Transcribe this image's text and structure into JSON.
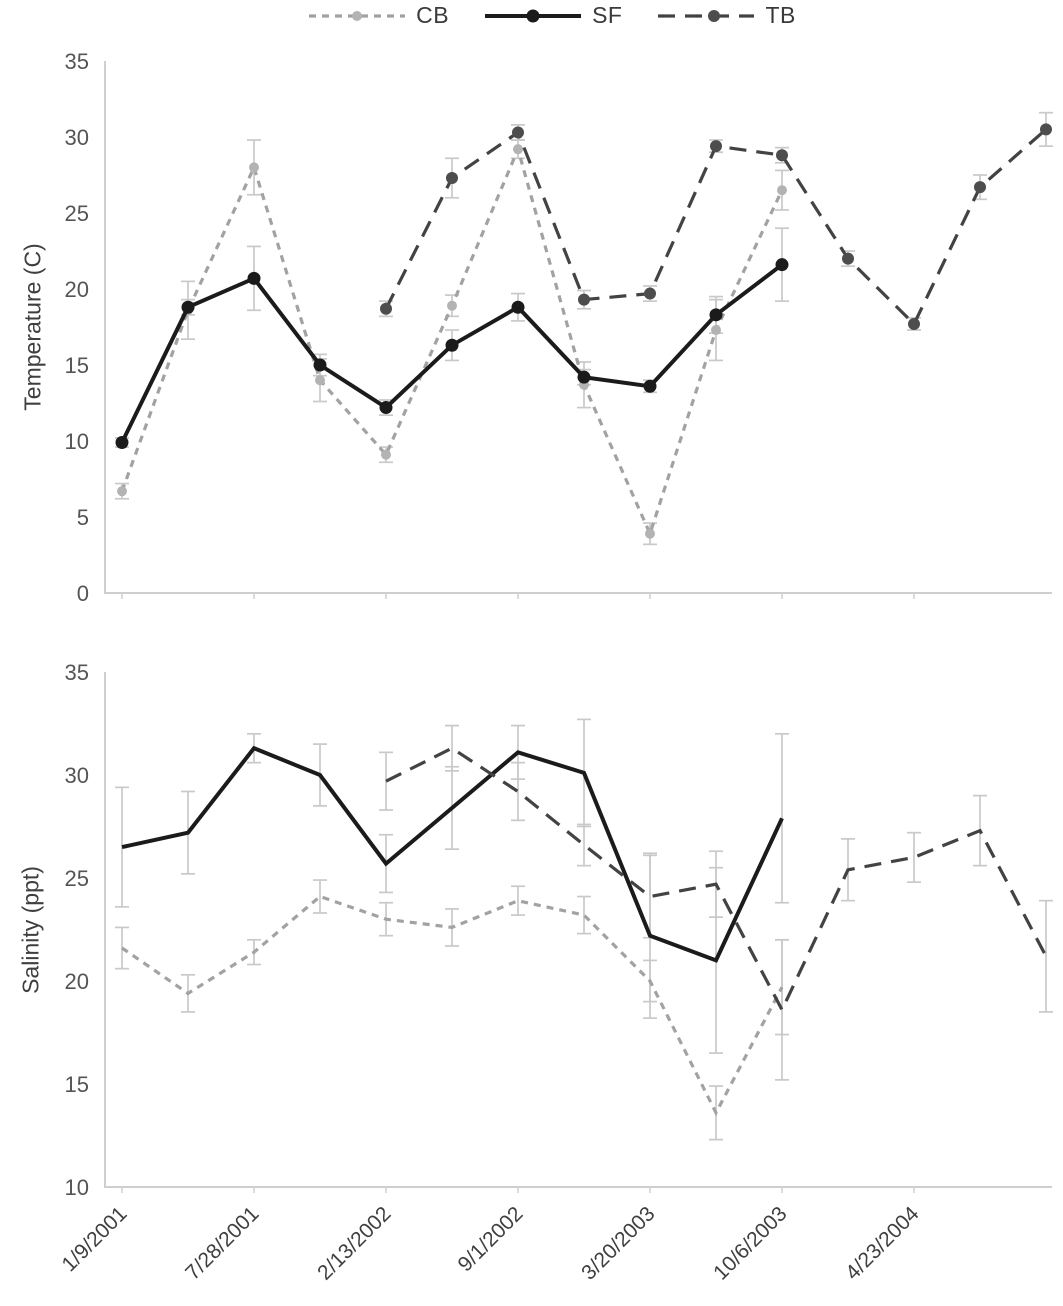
{
  "legend": {
    "items": [
      {
        "label": "CB"
      },
      {
        "label": "SF"
      },
      {
        "label": "TB"
      }
    ]
  },
  "colors": {
    "cb": "#a2a2a2",
    "cb_marker": "#b3b3b3",
    "sf": "#1b1b1b",
    "tb": "#434343",
    "tb_marker": "#4d4d4d",
    "axis": "#cfcfcf",
    "tick_text": "#555555",
    "label_text": "#3f3f3f",
    "error_bar": "#c9c9c9"
  },
  "x_axis": {
    "tick_labels": [
      "1/9/2001",
      "7/28/2001",
      "2/13/2002",
      "9/1/2002",
      "3/20/2003",
      "10/6/2003",
      "4/23/2004"
    ],
    "label_slots": [
      0,
      2,
      4,
      6,
      8,
      10,
      12
    ],
    "num_slots": 15
  },
  "chart_data": [
    {
      "type": "line",
      "title": "",
      "xlabel": "",
      "ylabel": "Temperature (C)",
      "ylim": [
        0,
        35
      ],
      "yticks": [
        0,
        5,
        10,
        15,
        20,
        25,
        30,
        35
      ],
      "grid": false,
      "legend_position": "top-center",
      "x_tick_labels": [
        "1/9/2001",
        "7/28/2001",
        "2/13/2002",
        "9/1/2002",
        "3/20/2003",
        "10/6/2003",
        "4/23/2004"
      ],
      "series": [
        {
          "name": "CB",
          "color_key": "cb",
          "marker_color_key": "cb_marker",
          "line_style": "short-dash",
          "marker": true,
          "start_slot": 0,
          "values": [
            6.7,
            18.6,
            28.0,
            14.0,
            9.1,
            18.9,
            29.2,
            13.7,
            3.9,
            17.3,
            26.5
          ],
          "errors": [
            0.5,
            1.9,
            1.8,
            1.4,
            0.5,
            0.7,
            0.6,
            1.5,
            0.7,
            2.0,
            1.3
          ]
        },
        {
          "name": "SF",
          "color_key": "sf",
          "marker_color_key": "sf",
          "line_style": "solid",
          "marker": true,
          "start_slot": 0,
          "values": [
            9.9,
            18.8,
            20.7,
            15.0,
            12.2,
            16.3,
            18.8,
            14.2,
            13.6,
            18.3,
            21.6
          ],
          "errors": [
            0.3,
            0.5,
            2.1,
            0.7,
            0.5,
            1.0,
            0.9,
            0.5,
            0.4,
            1.2,
            2.4
          ]
        },
        {
          "name": "TB",
          "color_key": "tb",
          "marker_color_key": "tb_marker",
          "line_style": "long-dash",
          "marker": true,
          "start_slot": 4,
          "values": [
            18.7,
            27.3,
            30.3,
            19.3,
            19.7,
            29.4,
            28.8,
            22.0,
            17.7,
            26.7,
            30.5
          ],
          "errors": [
            0.5,
            1.3,
            0.5,
            0.6,
            0.5,
            0.4,
            0.5,
            0.5,
            0.4,
            0.8,
            1.1
          ]
        }
      ]
    },
    {
      "type": "line",
      "title": "",
      "xlabel": "",
      "ylabel": "Salinity (ppt)",
      "ylim": [
        10,
        35
      ],
      "yticks": [
        10,
        15,
        20,
        25,
        30,
        35
      ],
      "grid": false,
      "legend_position": "top-center",
      "x_tick_labels": [
        "1/9/2001",
        "7/28/2001",
        "2/13/2002",
        "9/1/2002",
        "3/20/2003",
        "10/6/2003",
        "4/23/2004"
      ],
      "series": [
        {
          "name": "CB",
          "color_key": "cb",
          "marker_color_key": "cb_marker",
          "line_style": "short-dash",
          "marker": false,
          "start_slot": 0,
          "values": [
            21.6,
            19.4,
            21.4,
            24.1,
            23.0,
            22.6,
            23.9,
            23.2,
            20.0,
            13.6,
            19.7
          ],
          "errors": [
            1.0,
            0.9,
            0.6,
            0.8,
            0.8,
            0.9,
            0.7,
            0.9,
            1.0,
            1.3,
            2.3
          ]
        },
        {
          "name": "SF",
          "color_key": "sf",
          "marker_color_key": "sf",
          "line_style": "solid",
          "marker": false,
          "start_slot": 0,
          "values": [
            26.5,
            27.2,
            31.3,
            30.0,
            25.7,
            28.4,
            31.1,
            30.1,
            22.2,
            21.0,
            27.9
          ],
          "errors": [
            2.9,
            2.0,
            0.7,
            1.5,
            1.4,
            2.0,
            1.3,
            2.6,
            4.0,
            4.5,
            4.1
          ]
        },
        {
          "name": "TB",
          "color_key": "tb",
          "marker_color_key": "tb_marker",
          "line_style": "long-dash",
          "marker": false,
          "start_slot": 4,
          "values": [
            29.7,
            31.3,
            29.2,
            26.6,
            24.1,
            24.7,
            18.6,
            25.4,
            26.0,
            27.3,
            21.2
          ],
          "errors": [
            1.4,
            1.1,
            1.4,
            1.0,
            2.0,
            1.6,
            3.4,
            1.5,
            1.2,
            1.7,
            2.7
          ]
        }
      ]
    }
  ]
}
